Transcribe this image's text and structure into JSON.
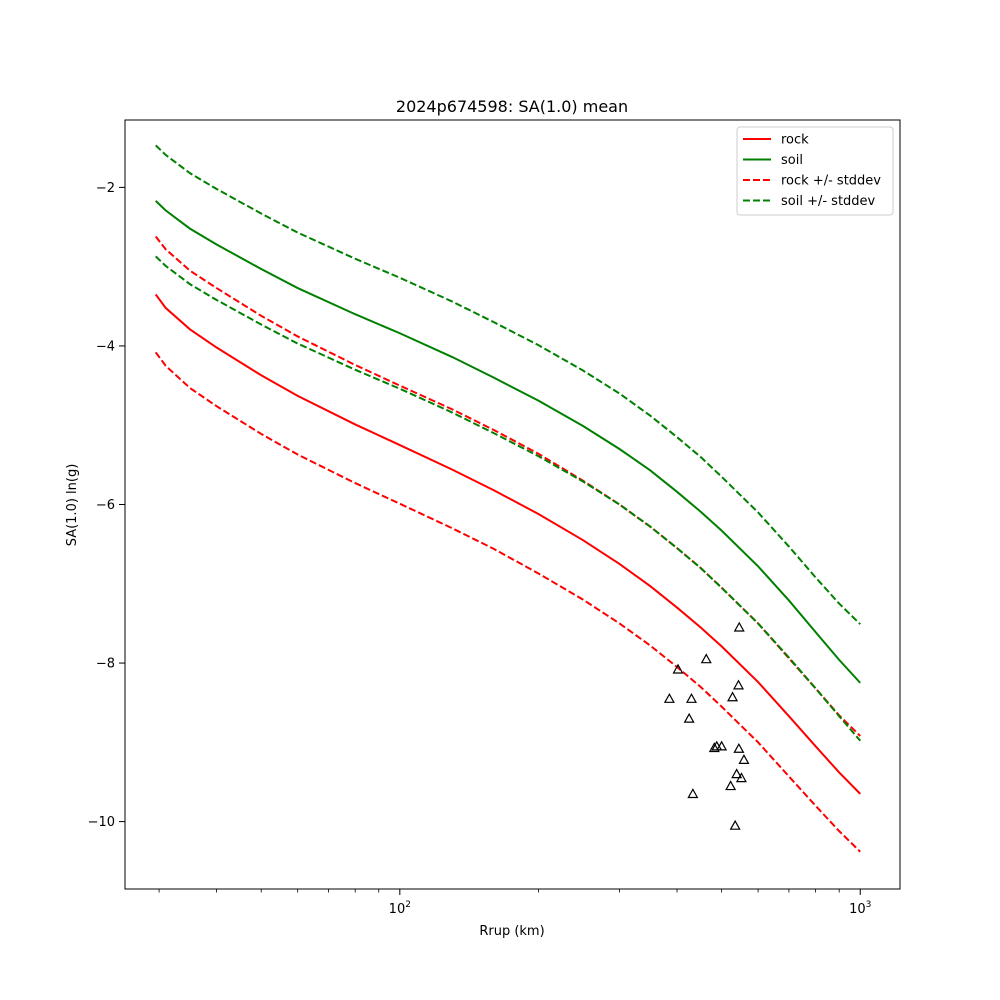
{
  "chart_data": {
    "type": "line",
    "title": "2024p674598: SA(1.0) mean",
    "xlabel": "Rrup (km)",
    "ylabel": "SA(1.0) ln(g)",
    "xscale": "log",
    "xlim": [
      25.3,
      1220
    ],
    "ylim": [
      -10.85,
      -1.15
    ],
    "x_ticks": [
      {
        "value": 100,
        "base": "10",
        "exp": "2"
      },
      {
        "value": 1000,
        "base": "10",
        "exp": "3"
      }
    ],
    "y_ticks": [
      {
        "value": -2,
        "label": "−2"
      },
      {
        "value": -4,
        "label": "−4"
      },
      {
        "value": -6,
        "label": "−6"
      },
      {
        "value": -8,
        "label": "−8"
      },
      {
        "value": -10,
        "label": "−10"
      }
    ],
    "grid": false,
    "legend_position": "upper right",
    "x": [
      29.5,
      31.0,
      35.0,
      40.0,
      50.0,
      60.0,
      80.0,
      100.0,
      130.0,
      160.0,
      200.0,
      250.0,
      300.0,
      350.0,
      400.0,
      450.0,
      500.0,
      600.0,
      700.0,
      800.0,
      900.0,
      1000.0
    ],
    "series": [
      {
        "name": "rock",
        "color": "#ff0000",
        "dash": "solid",
        "values": [
          -3.35,
          -3.52,
          -3.79,
          -4.02,
          -4.37,
          -4.63,
          -4.99,
          -5.25,
          -5.56,
          -5.82,
          -6.12,
          -6.45,
          -6.75,
          -7.03,
          -7.3,
          -7.55,
          -7.79,
          -8.24,
          -8.67,
          -9.05,
          -9.38,
          -9.65
        ]
      },
      {
        "name": "soil",
        "color": "#008000",
        "dash": "solid",
        "values": [
          -2.17,
          -2.29,
          -2.52,
          -2.72,
          -3.03,
          -3.27,
          -3.6,
          -3.84,
          -4.14,
          -4.4,
          -4.69,
          -5.01,
          -5.3,
          -5.57,
          -5.84,
          -6.09,
          -6.33,
          -6.78,
          -7.21,
          -7.61,
          -7.96,
          -8.25
        ]
      },
      {
        "name": "rock +/- stddev",
        "color": "#ff0000",
        "dash": "dashed",
        "values": [
          -2.62,
          -2.78,
          -3.05,
          -3.27,
          -3.62,
          -3.88,
          -4.24,
          -4.5,
          -4.8,
          -5.06,
          -5.36,
          -5.7,
          -6.0,
          -6.28,
          -6.55,
          -6.8,
          -7.05,
          -7.5,
          -7.94,
          -8.32,
          -8.66,
          -8.92
        ]
      },
      {
        "name": "",
        "color": "#ff0000",
        "dash": "dashed",
        "values": [
          -4.08,
          -4.25,
          -4.53,
          -4.76,
          -5.11,
          -5.37,
          -5.73,
          -5.99,
          -6.3,
          -6.56,
          -6.87,
          -7.2,
          -7.5,
          -7.78,
          -8.05,
          -8.3,
          -8.55,
          -9.0,
          -9.43,
          -9.8,
          -10.12,
          -10.38
        ]
      },
      {
        "name": "soil +/- stddev",
        "color": "#008000",
        "dash": "dashed",
        "values": [
          -1.47,
          -1.59,
          -1.82,
          -2.02,
          -2.33,
          -2.57,
          -2.9,
          -3.14,
          -3.44,
          -3.7,
          -3.99,
          -4.31,
          -4.6,
          -4.88,
          -5.15,
          -5.4,
          -5.65,
          -6.1,
          -6.53,
          -6.92,
          -7.25,
          -7.51
        ]
      },
      {
        "name": "",
        "color": "#008000",
        "dash": "dashed",
        "values": [
          -2.87,
          -2.99,
          -3.22,
          -3.42,
          -3.73,
          -3.97,
          -4.3,
          -4.54,
          -4.84,
          -5.1,
          -5.39,
          -5.71,
          -6.0,
          -6.28,
          -6.55,
          -6.8,
          -7.05,
          -7.5,
          -7.93,
          -8.32,
          -8.67,
          -8.98
        ]
      }
    ],
    "observations": {
      "marker": "triangle",
      "color": "#000000",
      "points": [
        [
          385,
          -8.45
        ],
        [
          402,
          -8.08
        ],
        [
          425,
          -8.7
        ],
        [
          430,
          -8.45
        ],
        [
          433,
          -9.65
        ],
        [
          463,
          -7.95
        ],
        [
          482,
          -9.07
        ],
        [
          488,
          -9.05
        ],
        [
          500,
          -9.05
        ],
        [
          523,
          -9.55
        ],
        [
          528,
          -8.43
        ],
        [
          535,
          -10.05
        ],
        [
          539,
          -9.4
        ],
        [
          546,
          -7.55
        ],
        [
          544,
          -8.28
        ],
        [
          545,
          -9.08
        ],
        [
          552,
          -9.45
        ],
        [
          559,
          -9.22
        ]
      ]
    },
    "legend": [
      {
        "label": "rock",
        "color": "#ff0000",
        "dash": "solid"
      },
      {
        "label": "soil",
        "color": "#008000",
        "dash": "solid"
      },
      {
        "label": "rock +/- stddev",
        "color": "#ff0000",
        "dash": "dashed"
      },
      {
        "label": "soil +/- stddev",
        "color": "#008000",
        "dash": "dashed"
      }
    ]
  }
}
